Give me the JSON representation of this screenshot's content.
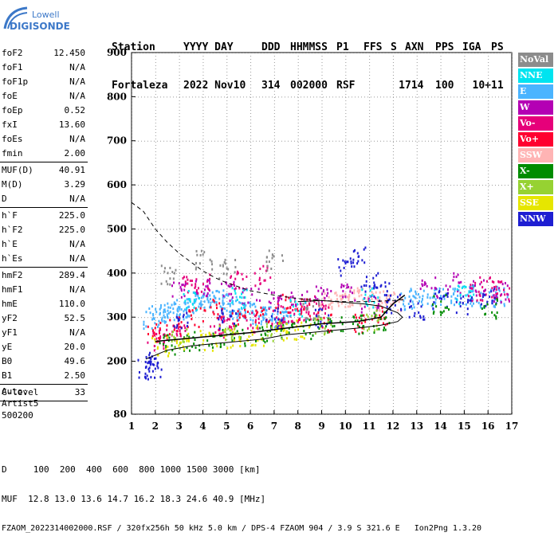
{
  "logo": {
    "line1": "Lowell",
    "line2": "DIGISONDE"
  },
  "header": {
    "labels": [
      "Station",
      "YYYY DAY",
      "DDD",
      "HHMMSS",
      "P1",
      "FFS",
      "S",
      "AXN",
      "PPS",
      "IGA",
      "PS"
    ],
    "values": [
      "Fortaleza",
      "2022 Nov10",
      "314",
      "002000",
      "RSF",
      "",
      "1",
      "714",
      "100",
      "10+",
      "11"
    ]
  },
  "params": [
    {
      "name": "foF2",
      "value": "12.450"
    },
    {
      "name": "foF1",
      "value": "N/A"
    },
    {
      "name": "foF1p",
      "value": "N/A"
    },
    {
      "name": "foE",
      "value": "N/A"
    },
    {
      "name": "foEp",
      "value": "0.52"
    },
    {
      "name": "fxI",
      "value": "13.60"
    },
    {
      "name": "foEs",
      "value": "N/A"
    },
    {
      "name": "fmin",
      "value": "2.00"
    },
    {
      "name": "MUF(D)",
      "value": "40.91",
      "sep": true
    },
    {
      "name": "M(D)",
      "value": "3.29"
    },
    {
      "name": "D",
      "value": "N/A"
    },
    {
      "name": "h`F",
      "value": "225.0",
      "sep": true
    },
    {
      "name": "h`F2",
      "value": "225.0"
    },
    {
      "name": "h`E",
      "value": "N/A"
    },
    {
      "name": "h`Es",
      "value": "N/A"
    },
    {
      "name": "hmF2",
      "value": "289.4",
      "sep": true
    },
    {
      "name": "hmF1",
      "value": "N/A"
    },
    {
      "name": "hmE",
      "value": "110.0"
    },
    {
      "name": "yF2",
      "value": "52.5"
    },
    {
      "name": "yF1",
      "value": "N/A"
    },
    {
      "name": "yE",
      "value": "20.0"
    },
    {
      "name": "B0",
      "value": "49.6"
    },
    {
      "name": "B1",
      "value": "2.50"
    },
    {
      "name": "C-level",
      "value": "33",
      "sep": true
    }
  ],
  "extra": [
    "Auto:",
    "Artist5",
    "500200"
  ],
  "legend": [
    {
      "label": "NoVal",
      "color": "#8c8c8c"
    },
    {
      "label": "NNE",
      "color": "#00e4f0"
    },
    {
      "label": "E",
      "color": "#4ab4ff"
    },
    {
      "label": "W",
      "color": "#b400b4"
    },
    {
      "label": "Vo-",
      "color": "#e6007a"
    },
    {
      "label": "Vo+",
      "color": "#ff0030"
    },
    {
      "label": "SSW",
      "color": "#ffb4b4"
    },
    {
      "label": "X-",
      "color": "#008c00"
    },
    {
      "label": "X+",
      "color": "#96d232"
    },
    {
      "label": "SSE",
      "color": "#e6e600"
    },
    {
      "label": "NNW",
      "color": "#1e1ed2"
    }
  ],
  "footer": {
    "line1": "D     100  200  400  600  800 1000 1500 3000 [km]",
    "line2": "MUF  12.8 13.0 13.6 14.7 16.2 18.3 24.6 40.9 [MHz]",
    "line3": "FZAOM_2022314002000.RSF / 320fx256h 50 kHz 5.0 km / DPS-4 FZAOM 904 / 3.9 S 321.6 E   Ion2Png 1.3.20"
  },
  "chart_data": {
    "type": "scatter",
    "xlim": [
      1,
      17
    ],
    "ylim": [
      80,
      900
    ],
    "xticks": [
      1,
      2,
      3,
      4,
      5,
      6,
      7,
      8,
      9,
      10,
      11,
      12,
      13,
      14,
      15,
      16,
      17
    ],
    "yticks": [
      80,
      200,
      300,
      400,
      500,
      600,
      700,
      800,
      900
    ],
    "series": [
      {
        "name": "E",
        "color": "#4ab4ff",
        "points": [
          [
            1.8,
            300
          ],
          [
            2.1,
            305
          ],
          [
            2.4,
            310
          ],
          [
            2.7,
            315
          ],
          [
            3.0,
            320
          ],
          [
            3.3,
            325
          ],
          [
            3.6,
            330
          ],
          [
            3.9,
            335
          ],
          [
            4.2,
            338
          ],
          [
            4.5,
            340
          ],
          [
            4.8,
            335
          ],
          [
            5.1,
            330
          ],
          [
            5.4,
            322
          ],
          [
            5.7,
            318
          ],
          [
            6.0,
            312
          ],
          [
            6.3,
            308
          ],
          [
            6.6,
            305
          ],
          [
            6.9,
            302
          ],
          [
            7.2,
            300
          ],
          [
            7.5,
            298
          ],
          [
            12.6,
            340
          ],
          [
            13.0,
            345
          ],
          [
            13.5,
            342
          ],
          [
            14.0,
            345
          ],
          [
            14.5,
            350
          ],
          [
            15.0,
            348
          ],
          [
            15.5,
            352
          ],
          [
            16.0,
            345
          ],
          [
            16.5,
            348
          ]
        ]
      },
      {
        "name": "SSW",
        "color": "#ffb4b4",
        "points": [
          [
            9.2,
            340
          ],
          [
            9.6,
            345
          ],
          [
            10.0,
            350
          ],
          [
            10.4,
            348
          ],
          [
            10.8,
            345
          ],
          [
            11.2,
            342
          ],
          [
            11.6,
            340
          ],
          [
            12.0,
            338
          ]
        ]
      },
      {
        "name": "Vo-",
        "color": "#e6007a",
        "points": [
          [
            2.0,
            250
          ],
          [
            2.5,
            260
          ],
          [
            3.0,
            270
          ],
          [
            3.5,
            375
          ],
          [
            4.0,
            380
          ],
          [
            4.5,
            280
          ],
          [
            5.0,
            285
          ],
          [
            5.5,
            390
          ],
          [
            6.0,
            290
          ],
          [
            6.5,
            395
          ],
          [
            7.0,
            300
          ],
          [
            7.5,
            305
          ],
          [
            8.0,
            310
          ],
          [
            8.5,
            320
          ],
          [
            9.0,
            330
          ],
          [
            15.5,
            360
          ],
          [
            16.0,
            370
          ],
          [
            16.5,
            365
          ]
        ]
      },
      {
        "name": "Vo+",
        "color": "#ff0030",
        "points": [
          [
            1.9,
            270
          ],
          [
            2.8,
            280
          ],
          [
            3.7,
            300
          ],
          [
            4.6,
            320
          ],
          [
            5.5,
            300
          ],
          [
            6.4,
            310
          ],
          [
            7.3,
            330
          ],
          [
            8.2,
            320
          ],
          [
            9.1,
            290
          ],
          [
            10.5,
            290
          ],
          [
            11.4,
            300
          ]
        ]
      },
      {
        "name": "W",
        "color": "#b400b4",
        "points": [
          [
            3.0,
            360
          ],
          [
            4.0,
            370
          ],
          [
            5.0,
            360
          ],
          [
            6.0,
            350
          ],
          [
            7.0,
            345
          ],
          [
            8.0,
            340
          ],
          [
            9.0,
            350
          ],
          [
            10.0,
            360
          ],
          [
            11.0,
            330
          ],
          [
            13.5,
            370
          ],
          [
            14.5,
            380
          ],
          [
            15.5,
            370
          ],
          [
            16.5,
            360
          ]
        ]
      },
      {
        "name": "NNW",
        "color": "#1e1ed2",
        "points": [
          [
            1.6,
            185
          ],
          [
            1.9,
            185
          ],
          [
            1.9,
            200
          ],
          [
            3.0,
            295
          ],
          [
            5.0,
            300
          ],
          [
            7.0,
            300
          ],
          [
            9.0,
            300
          ],
          [
            10.0,
            420
          ],
          [
            10.5,
            440
          ],
          [
            11.0,
            380
          ],
          [
            11.5,
            360
          ],
          [
            12.0,
            330
          ],
          [
            13.0,
            320
          ],
          [
            14.0,
            340
          ],
          [
            15.0,
            330
          ],
          [
            16.0,
            350
          ]
        ]
      },
      {
        "name": "X-",
        "color": "#008c00",
        "points": [
          [
            2.5,
            240
          ],
          [
            3.5,
            250
          ],
          [
            4.5,
            255
          ],
          [
            5.5,
            260
          ],
          [
            6.5,
            265
          ],
          [
            7.5,
            270
          ],
          [
            8.5,
            275
          ],
          [
            9.5,
            280
          ],
          [
            10.5,
            285
          ],
          [
            11.5,
            290
          ],
          [
            14.0,
            330
          ],
          [
            16.0,
            320
          ]
        ]
      },
      {
        "name": "SSE",
        "color": "#e6e600",
        "points": [
          [
            2.2,
            235
          ],
          [
            3.2,
            245
          ],
          [
            4.2,
            250
          ],
          [
            5.2,
            255
          ],
          [
            6.2,
            260
          ],
          [
            7.2,
            265
          ],
          [
            8.2,
            272
          ]
        ]
      },
      {
        "name": "X+",
        "color": "#96d232",
        "points": [
          [
            3.0,
            255
          ],
          [
            5.0,
            262
          ],
          [
            7.0,
            270
          ],
          [
            9.0,
            280
          ],
          [
            11.0,
            295
          ]
        ]
      },
      {
        "name": "NNE",
        "color": "#00e4f0",
        "points": [
          [
            3.5,
            340
          ],
          [
            5.5,
            345
          ],
          [
            8.0,
            320
          ],
          [
            11.0,
            345
          ],
          [
            15.0,
            355
          ]
        ]
      },
      {
        "name": "NoVal",
        "color": "#8c8c8c",
        "points": [
          [
            2.5,
            400
          ],
          [
            4.0,
            430
          ],
          [
            5.0,
            410
          ],
          [
            7.0,
            430
          ],
          [
            8.5,
            320
          ]
        ]
      }
    ],
    "profile_curve": [
      [
        1.6,
        205
      ],
      [
        2.5,
        225
      ],
      [
        3.5,
        235
      ],
      [
        4.5,
        240
      ],
      [
        5.5,
        245
      ],
      [
        6.5,
        250
      ],
      [
        7.5,
        260
      ],
      [
        8.5,
        265
      ],
      [
        9.5,
        270
      ],
      [
        10.5,
        275
      ],
      [
        11.5,
        282
      ],
      [
        12.2,
        290
      ],
      [
        12.4,
        300
      ],
      [
        12.2,
        310
      ],
      [
        11.5,
        325
      ],
      [
        10.8,
        330
      ],
      [
        9.0,
        338
      ],
      [
        8.0,
        335
      ]
    ],
    "dashed_curve": [
      [
        1.0,
        560
      ],
      [
        1.5,
        540
      ],
      [
        2.0,
        500
      ],
      [
        2.5,
        470
      ],
      [
        3.0,
        445
      ],
      [
        3.5,
        425
      ],
      [
        4.0,
        405
      ],
      [
        4.5,
        390
      ],
      [
        5.0,
        378
      ],
      [
        6.0,
        360
      ],
      [
        7.0,
        350
      ],
      [
        8.0,
        342
      ],
      [
        9.0,
        338
      ],
      [
        10.0,
        335
      ],
      [
        11.0,
        335
      ],
      [
        12.0,
        338
      ],
      [
        12.5,
        340
      ]
    ],
    "trace_curve": [
      [
        2.0,
        245
      ],
      [
        4.0,
        255
      ],
      [
        6.0,
        265
      ],
      [
        7.5,
        275
      ],
      [
        9.0,
        285
      ],
      [
        10.5,
        290
      ],
      [
        11.5,
        300
      ],
      [
        12.0,
        330
      ],
      [
        12.5,
        350
      ]
    ]
  }
}
